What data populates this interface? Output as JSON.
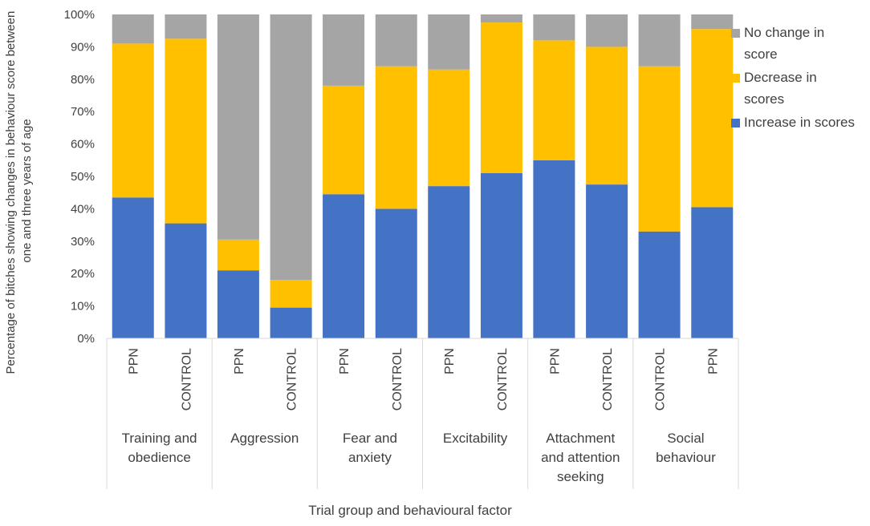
{
  "chart_data": {
    "type": "bar",
    "stacked": true,
    "normalized": true,
    "ylabel_lines": [
      "Percentage of bitches showing changes in behaviour score between",
      "one and three years of age"
    ],
    "xlabel": "Trial group and behavioural factor",
    "ylim": [
      0,
      100
    ],
    "ytick_labels": [
      "0%",
      "10%",
      "20%",
      "30%",
      "40%",
      "50%",
      "60%",
      "70%",
      "80%",
      "90%",
      "100%"
    ],
    "grid": false,
    "legend_position": "right",
    "groups": [
      {
        "label_lines": [
          "Training and",
          "obedience"
        ],
        "bars": [
          "PPN",
          "CONTROL"
        ]
      },
      {
        "label_lines": [
          "Aggression"
        ],
        "bars": [
          "PPN",
          "CONTROL"
        ]
      },
      {
        "label_lines": [
          "Fear and",
          "anxiety"
        ],
        "bars": [
          "PPN",
          "CONTROL"
        ]
      },
      {
        "label_lines": [
          "Excitability"
        ],
        "bars": [
          "PPN",
          "CONTROL"
        ]
      },
      {
        "label_lines": [
          "Attachment",
          "and attention",
          "seeking"
        ],
        "bars": [
          "PPN",
          "CONTROL"
        ]
      },
      {
        "label_lines": [
          "Social",
          "behaviour"
        ],
        "bars": [
          "CONTROL",
          "PPN"
        ]
      }
    ],
    "series": [
      {
        "name": "Increase in scores",
        "legend_lines": [
          "Increase in scores"
        ],
        "color": "#4472C4",
        "values": [
          43.5,
          35.5,
          21,
          9.5,
          44.5,
          40,
          47,
          51,
          55,
          47.5,
          33,
          40.5
        ]
      },
      {
        "name": "Decrease in scores",
        "legend_lines": [
          "Decrease in",
          "scores"
        ],
        "color": "#FFC000",
        "values": [
          47.5,
          57,
          9.5,
          8.5,
          33.5,
          44,
          36,
          46.5,
          37,
          42.5,
          51,
          55
        ]
      },
      {
        "name": "No change in score",
        "legend_lines": [
          "No change in",
          "score"
        ],
        "color": "#A5A5A5",
        "values": [
          9,
          7.5,
          69.5,
          82,
          22,
          16,
          17,
          2.5,
          8,
          10,
          16,
          4.5
        ]
      }
    ]
  }
}
